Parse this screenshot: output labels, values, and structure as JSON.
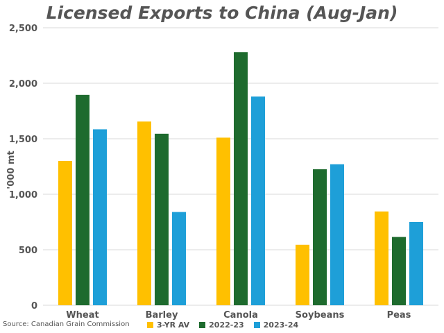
{
  "colors": {
    "avg": "#FFC000",
    "y2022": "#1E6B2E",
    "y2023": "#1E9FD8",
    "grid": "#D9D9D9",
    "text": "#555555"
  },
  "chart_data": {
    "type": "bar",
    "title": "Licensed Exports to China (Aug-Jan)",
    "ylabel": "'000 mt",
    "xlabel": "",
    "ylim": [
      0,
      2500
    ],
    "yticks": [
      0,
      500,
      1000,
      1500,
      2000,
      2500
    ],
    "ytick_labels": [
      "0",
      "500",
      "1,000",
      "1,500",
      "2,000",
      "2,500"
    ],
    "grid": true,
    "legend_position": "bottom",
    "categories": [
      "Wheat",
      "Barley",
      "Canola",
      "Soybeans",
      "Peas"
    ],
    "series": [
      {
        "name": "3-YR AV",
        "color": "#FFC000",
        "values": [
          1300,
          1655,
          1510,
          545,
          845
        ]
      },
      {
        "name": "2022-23",
        "color": "#1E6B2E",
        "values": [
          1895,
          1545,
          2280,
          1225,
          615
        ]
      },
      {
        "name": "2023-24",
        "color": "#1E9FD8",
        "values": [
          1585,
          840,
          1880,
          1270,
          750
        ]
      }
    ],
    "source": "Source: Canadian Grain Commission"
  }
}
